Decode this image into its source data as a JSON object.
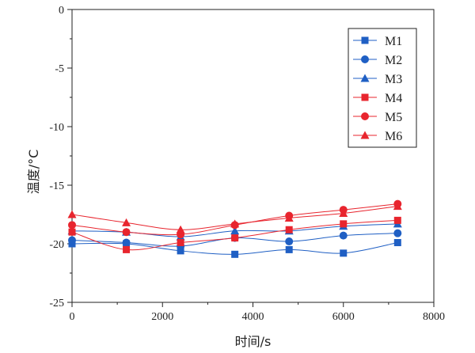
{
  "chart_data": {
    "type": "line",
    "title": "",
    "xlabel": "时间/s",
    "ylabel": "温度/°C",
    "xlim": [
      0,
      8000
    ],
    "ylim": [
      -25,
      0
    ],
    "xticks": [
      0,
      2000,
      4000,
      6000,
      8000
    ],
    "yticks": [
      0,
      -5,
      -10,
      -15,
      -20,
      -25
    ],
    "x": [
      0,
      1200,
      2400,
      3600,
      4800,
      6000,
      7200
    ],
    "grid": false,
    "legend_position": "top-right",
    "series": [
      {
        "name": "M1",
        "color": "#1f5fc4",
        "marker": "square",
        "values": [
          -20.0,
          -20.0,
          -20.6,
          -20.9,
          -20.5,
          -20.8,
          -19.9
        ]
      },
      {
        "name": "M2",
        "color": "#1f5fc4",
        "marker": "circle",
        "values": [
          -19.7,
          -19.9,
          -20.2,
          -19.5,
          -19.8,
          -19.3,
          -19.1
        ]
      },
      {
        "name": "M3",
        "color": "#1f5fc4",
        "marker": "triangle",
        "values": [
          -18.9,
          -19.0,
          -19.4,
          -18.9,
          -18.9,
          -18.5,
          -18.3
        ]
      },
      {
        "name": "M4",
        "color": "#e8252e",
        "marker": "square",
        "values": [
          -19.0,
          -20.5,
          -19.9,
          -19.5,
          -18.8,
          -18.3,
          -18.0
        ]
      },
      {
        "name": "M5",
        "color": "#e8252e",
        "marker": "circle",
        "values": [
          -18.4,
          -19.0,
          -19.2,
          -18.4,
          -17.6,
          -17.1,
          -16.6
        ]
      },
      {
        "name": "M6",
        "color": "#e8252e",
        "marker": "triangle",
        "values": [
          -17.5,
          -18.2,
          -18.8,
          -18.3,
          -17.8,
          -17.4,
          -16.8
        ]
      }
    ]
  }
}
